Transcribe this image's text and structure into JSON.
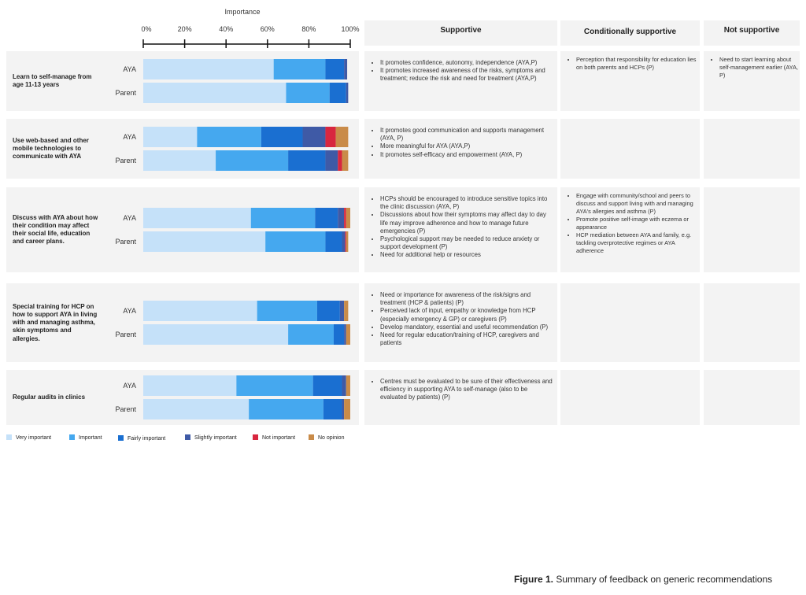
{
  "chart_data": {
    "type": "bar",
    "stacked": true,
    "orientation": "horizontal",
    "title": "Importance",
    "xlim": [
      0,
      100
    ],
    "x_ticks": [
      "0%",
      "20%",
      "40%",
      "60%",
      "80%",
      "100%"
    ],
    "categories_legend": [
      "Very important",
      "Important",
      "Fairly important",
      "Slightly important",
      "Not important",
      "No opinion"
    ],
    "colors": [
      "#c5e1f9",
      "#45a8ef",
      "#1a6fd1",
      "#3f5aa6",
      "#d8263f",
      "#c98b49"
    ],
    "groups": [
      "AYA",
      "Parent"
    ],
    "recommendations": [
      {
        "label": "Learn to self-manage from age 11-13 years",
        "AYA": [
          63,
          25,
          9,
          1.5,
          0,
          0
        ],
        "Parent": [
          69,
          21,
          8,
          1,
          0,
          0
        ]
      },
      {
        "label": "Use web-based and other mobile technologies to communicate with AYA",
        "AYA": [
          26,
          31,
          20,
          11,
          5,
          6
        ],
        "Parent": [
          35,
          35,
          18,
          6,
          2,
          3
        ]
      },
      {
        "label": "Discuss with AYA about how their condition may affect their social life, education and career plans.",
        "AYA": [
          52,
          31,
          11,
          3,
          1,
          2
        ],
        "Parent": [
          59,
          29,
          8,
          1.5,
          0.5,
          1
        ]
      },
      {
        "label": "Special training for HCP on how to support AYA in living with and managing asthma, skin symptoms and allergies.",
        "AYA": [
          55,
          29,
          11,
          2,
          0,
          2
        ],
        "Parent": [
          70,
          22,
          5,
          1,
          0,
          2
        ]
      },
      {
        "label": "Regular audits in clinics",
        "AYA": [
          45,
          37,
          14,
          2,
          0,
          2
        ],
        "Parent": [
          51,
          36,
          9,
          1,
          0,
          3
        ]
      }
    ]
  },
  "columns": {
    "supportive": "Supportive",
    "conditional": "Conditionally  supportive",
    "not_supportive": "Not supportive"
  },
  "group_labels": {
    "aya": "AYA",
    "parent": "Parent"
  },
  "feedback": [
    {
      "supportive": [
        "It promotes confidence, autonomy, independence (AYA,P)",
        "It promotes increased awareness of the risks, symptoms and treatment; reduce the risk and need for treatment (AYA,P)"
      ],
      "conditional": [
        "Perception that responsibility for education lies on both parents and HCPs (P)"
      ],
      "not_supportive": [
        "Need to start learning about self-management earlier (AYA, P)"
      ]
    },
    {
      "supportive": [
        "It promotes good communication and supports management  (AYA, P)",
        "More meaningful for AYA (AYA,P)",
        "It promotes self-efficacy and empowerment  (AYA, P)"
      ],
      "conditional": [],
      "not_supportive": []
    },
    {
      "supportive": [
        "HCPs should be encouraged to introduce sensitive topics into the clinic discussion (AYA, P)",
        "Discussions about how their symptoms may affect day to day life may improve adherence and how to manage future emergencies  (P)",
        "Psychological support may be needed to reduce anxiety or support development (P)",
        "Need for additional help or resources"
      ],
      "conditional": [
        "Engage with community/school and peers to discuss and support living with and managing AYA's allergies and asthma (P)",
        "Promote positive self-image with eczema or appearance",
        "HCP mediation between AYA and family, e.g. tackling overprotective regimes or AYA adherence"
      ],
      "not_supportive": []
    },
    {
      "supportive": [
        "Need or importance for awareness of the risk/signs and treatment (HCP & patients) (P)",
        "Perceived  lack of input, empathy or knowledge from HCP (especially emergency & GP) or caregivers (P)",
        "Develop mandatory, essential and useful recommendation (P)",
        "Need for regular education/training of HCP, caregivers and patients"
      ],
      "conditional": [],
      "not_supportive": []
    },
    {
      "supportive": [
        "Centres must be evaluated to be sure of their effectiveness and efficiency in supporting AYA to self-manage  (also to be evaluated by patients) (P)"
      ],
      "conditional": [],
      "not_supportive": []
    }
  ],
  "caption": {
    "label": "Figure 1.",
    "text": " Summary of feedback on generic recommendations"
  }
}
